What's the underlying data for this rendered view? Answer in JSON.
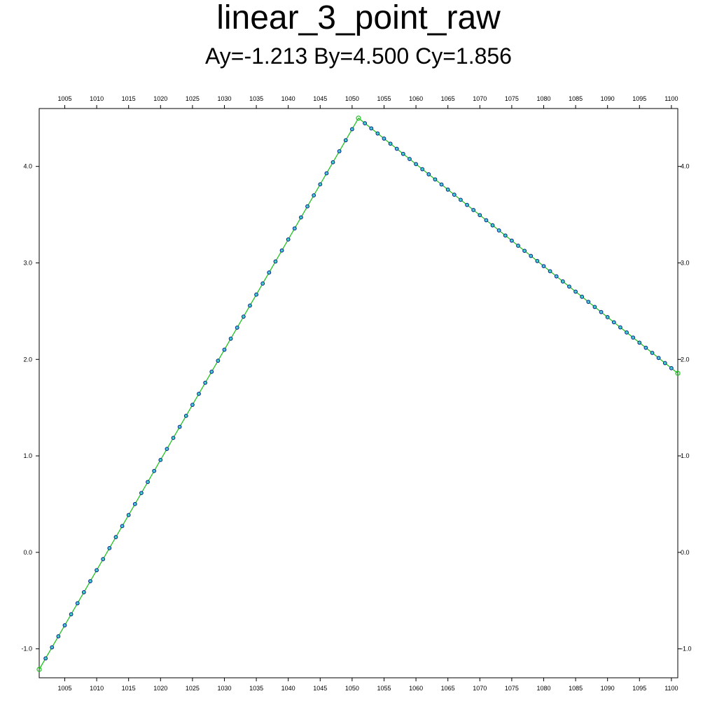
{
  "title": "linear_3_point_raw",
  "subtitle": "Ay=-1.213 By=4.500 Cy=1.856",
  "chart_data": {
    "type": "line",
    "title": "linear_3_point_raw",
    "subtitle": "Ay=-1.213 By=4.500 Cy=1.856",
    "xlabel": "",
    "ylabel": "",
    "xlim": [
      1001,
      1101
    ],
    "ylim": [
      -1.3,
      4.6
    ],
    "x_ticks": [
      1005,
      1010,
      1015,
      1020,
      1025,
      1030,
      1035,
      1040,
      1045,
      1050,
      1055,
      1060,
      1065,
      1070,
      1075,
      1080,
      1085,
      1090,
      1095,
      1100
    ],
    "x_tick_labels": [
      "1005",
      "1010",
      "1015",
      "1020",
      "1025",
      "1030",
      "1035",
      "1040",
      "1045",
      "1050",
      "1055",
      "1060",
      "1065",
      "1070",
      "1075",
      "1080",
      "1085",
      "1090",
      "1095",
      "1100"
    ],
    "y_ticks": [
      -1.0,
      0.0,
      1.0,
      2.0,
      3.0,
      4.0
    ],
    "y_tick_labels": [
      "-1.0",
      "0.0",
      "1.0",
      "2.0",
      "3.0",
      "4.0"
    ],
    "grid": false,
    "series": [
      {
        "type": "line",
        "color": "#22c322",
        "x": [
          1001,
          1051,
          1101
        ],
        "y": [
          -1.213,
          4.5,
          1.856
        ]
      },
      {
        "type": "scatter",
        "marker_edge_color": "#0a1e8c",
        "marker_fill_color": "#3fd0c8",
        "x_start": 1001,
        "x_end": 1101,
        "x_step": 1,
        "piecewise_linear_through": [
          [
            1001,
            -1.213
          ],
          [
            1051,
            4.5
          ],
          [
            1101,
            1.856
          ]
        ]
      }
    ]
  }
}
